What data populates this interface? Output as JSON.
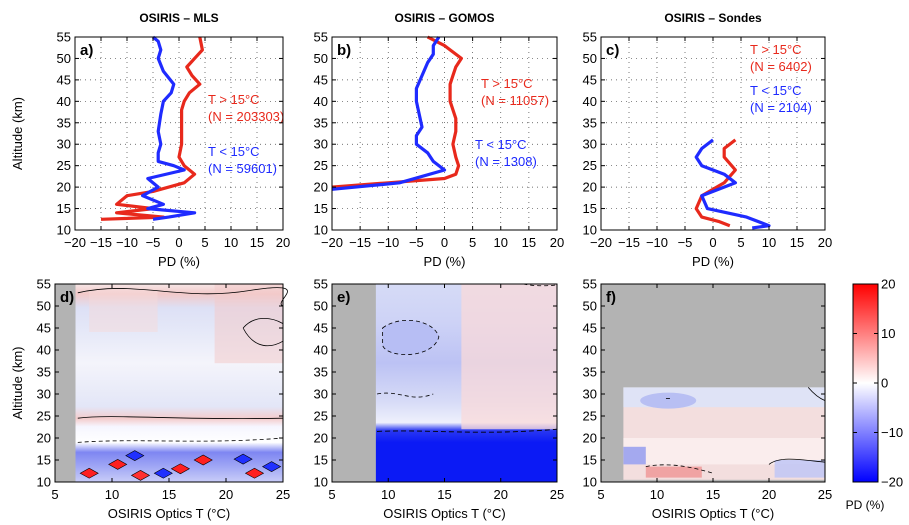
{
  "colors": {
    "red": "#e8291c",
    "blue": "#1f2bff",
    "gray": "#b3b3b3",
    "dotgrid": "#444444"
  },
  "chart_data": [
    {
      "panel": "a)",
      "type": "line",
      "title": "OSIRIS – MLS",
      "xlabel": "PD (%)",
      "ylabel": "Altitude (km)",
      "xlim": [
        -20,
        20
      ],
      "ylim": [
        10,
        55
      ],
      "xticks": [
        "−20",
        "−15",
        "−10",
        "−5",
        "0",
        "5",
        "10",
        "15",
        "20"
      ],
      "yticks": [
        "10",
        "15",
        "20",
        "25",
        "30",
        "35",
        "40",
        "45",
        "50",
        "55"
      ],
      "grid": true,
      "annotations": [
        {
          "text": "T > 15°C",
          "color": "red"
        },
        {
          "text": "(N = 203303)",
          "color": "red"
        },
        {
          "text": "T < 15°C",
          "color": "blue"
        },
        {
          "text": "(N = 59601)",
          "color": "blue"
        }
      ],
      "series": [
        {
          "color": "red",
          "x": [
            4,
            4.5,
            3,
            1.5,
            2.5,
            4,
            2,
            1,
            0.5,
            0.5,
            0.5,
            0.5,
            0,
            1,
            3,
            1,
            -5,
            -10,
            -12,
            -5,
            -12,
            -3,
            -15
          ],
          "y": [
            55,
            52,
            50,
            48,
            46,
            44,
            42,
            40,
            38,
            35,
            32,
            30,
            27,
            25,
            23,
            21,
            19,
            18,
            16,
            15,
            14,
            13,
            12.5
          ]
        },
        {
          "color": "blue",
          "x": [
            -5,
            -4,
            -3.5,
            -4,
            -3,
            -1,
            -1.5,
            -3,
            -3.5,
            -4,
            -3.5,
            -4,
            -4,
            -1,
            1,
            -6,
            -4,
            -7,
            -3,
            -6,
            3,
            -2,
            -5
          ],
          "y": [
            55,
            54,
            52,
            50,
            47,
            44,
            42,
            40,
            37,
            33,
            30,
            28,
            26,
            25,
            24,
            22,
            20,
            18,
            16,
            15,
            14,
            13,
            12.5
          ]
        }
      ]
    },
    {
      "panel": "b)",
      "type": "line",
      "title": "OSIRIS – GOMOS",
      "xlabel": "PD (%)",
      "ylabel": "",
      "xlim": [
        -20,
        20
      ],
      "ylim": [
        10,
        55
      ],
      "xticks": [
        "−20",
        "−15",
        "−10",
        "−5",
        "0",
        "5",
        "10",
        "15",
        "20"
      ],
      "yticks": [
        "10",
        "15",
        "20",
        "25",
        "30",
        "35",
        "40",
        "45",
        "50",
        "55"
      ],
      "grid": true,
      "annotations": [
        {
          "text": "T > 15°C",
          "color": "red"
        },
        {
          "text": "(N = 11057)",
          "color": "red"
        },
        {
          "text": "T < 15°C",
          "color": "blue"
        },
        {
          "text": "(N = 1308)",
          "color": "blue"
        }
      ],
      "series": [
        {
          "color": "red",
          "x": [
            -3,
            0,
            1,
            3,
            2,
            1.5,
            1,
            1,
            2,
            2,
            1.5,
            2,
            2.5,
            2,
            0,
            -10,
            -20
          ],
          "y": [
            55,
            53,
            52,
            50,
            48,
            46,
            44,
            40,
            36,
            33,
            30,
            27,
            25,
            23,
            22,
            21,
            20
          ]
        },
        {
          "color": "blue",
          "x": [
            -1,
            -2,
            -2,
            -3,
            -4,
            -5,
            -5,
            -4.5,
            -4,
            -5,
            -5,
            -3,
            -2,
            0,
            -8,
            -20
          ],
          "y": [
            55,
            53,
            51,
            49,
            46,
            43,
            40,
            37,
            34,
            32,
            30,
            28,
            26,
            24,
            21,
            19.5
          ]
        }
      ]
    },
    {
      "panel": "c)",
      "type": "line",
      "title": "OSIRIS – Sondes",
      "xlabel": "PD (%)",
      "ylabel": "",
      "xlim": [
        -20,
        20
      ],
      "ylim": [
        10,
        55
      ],
      "xticks": [
        "−20",
        "−15",
        "−10",
        "−5",
        "0",
        "5",
        "10",
        "15",
        "20"
      ],
      "yticks": [
        "10",
        "15",
        "20",
        "25",
        "30",
        "35",
        "40",
        "45",
        "50",
        "55"
      ],
      "grid": true,
      "annotations": [
        {
          "text": "T > 15°C",
          "color": "red"
        },
        {
          "text": "(N = 6402)",
          "color": "red"
        },
        {
          "text": "T < 15°C",
          "color": "blue"
        },
        {
          "text": "(N = 2104)",
          "color": "blue"
        }
      ],
      "series": [
        {
          "color": "red",
          "x": [
            4,
            2,
            2,
            4,
            2,
            -2,
            -3,
            -2,
            1,
            3
          ],
          "y": [
            31,
            29,
            27,
            24,
            21,
            18,
            15,
            13,
            12,
            11
          ]
        },
        {
          "color": "blue",
          "x": [
            0,
            -2,
            -3,
            -2,
            2,
            4,
            -2,
            -1,
            6,
            10,
            7
          ],
          "y": [
            31,
            29,
            27,
            25,
            23,
            21,
            18,
            15,
            13,
            11,
            10.5
          ]
        }
      ]
    },
    {
      "panel": "d)",
      "type": "heatmap",
      "title": "",
      "xlabel": "OSIRIS Optics T (°C)",
      "ylabel": "Altitude (km)",
      "xlim": [
        5,
        25
      ],
      "ylim": [
        10,
        55
      ],
      "xticks": [
        "5",
        "10",
        "15",
        "20",
        "25"
      ],
      "yticks": [
        "10",
        "15",
        "20",
        "25",
        "30",
        "35",
        "40",
        "45",
        "50",
        "55"
      ],
      "data_extent": {
        "x": [
          6.8,
          25
        ],
        "y": [
          10,
          55
        ]
      }
    },
    {
      "panel": "e)",
      "type": "heatmap",
      "title": "",
      "xlabel": "OSIRIS Optics T (°C)",
      "ylabel": "",
      "xlim": [
        5,
        25
      ],
      "ylim": [
        10,
        55
      ],
      "xticks": [
        "5",
        "10",
        "15",
        "20",
        "25"
      ],
      "yticks": [
        "10",
        "15",
        "20",
        "25",
        "30",
        "35",
        "40",
        "45",
        "50",
        "55"
      ],
      "data_extent": {
        "x": [
          8.9,
          25
        ],
        "y": [
          10,
          55
        ]
      }
    },
    {
      "panel": "f)",
      "type": "heatmap",
      "title": "",
      "xlabel": "OSIRIS Optics T (°C)",
      "ylabel": "",
      "xlim": [
        5,
        25
      ],
      "ylim": [
        10,
        55
      ],
      "xticks": [
        "5",
        "10",
        "15",
        "20",
        "25"
      ],
      "yticks": [
        "10",
        "15",
        "20",
        "25",
        "30",
        "35",
        "40",
        "45",
        "50",
        "55"
      ],
      "data_extent": {
        "x": [
          7,
          25
        ],
        "y": [
          10.5,
          31.5
        ]
      }
    }
  ],
  "colorbar": {
    "label": "PD (%)",
    "range": [
      -20,
      20
    ],
    "ticks": [
      "20",
      "10",
      "0",
      "−10",
      "−20"
    ]
  }
}
